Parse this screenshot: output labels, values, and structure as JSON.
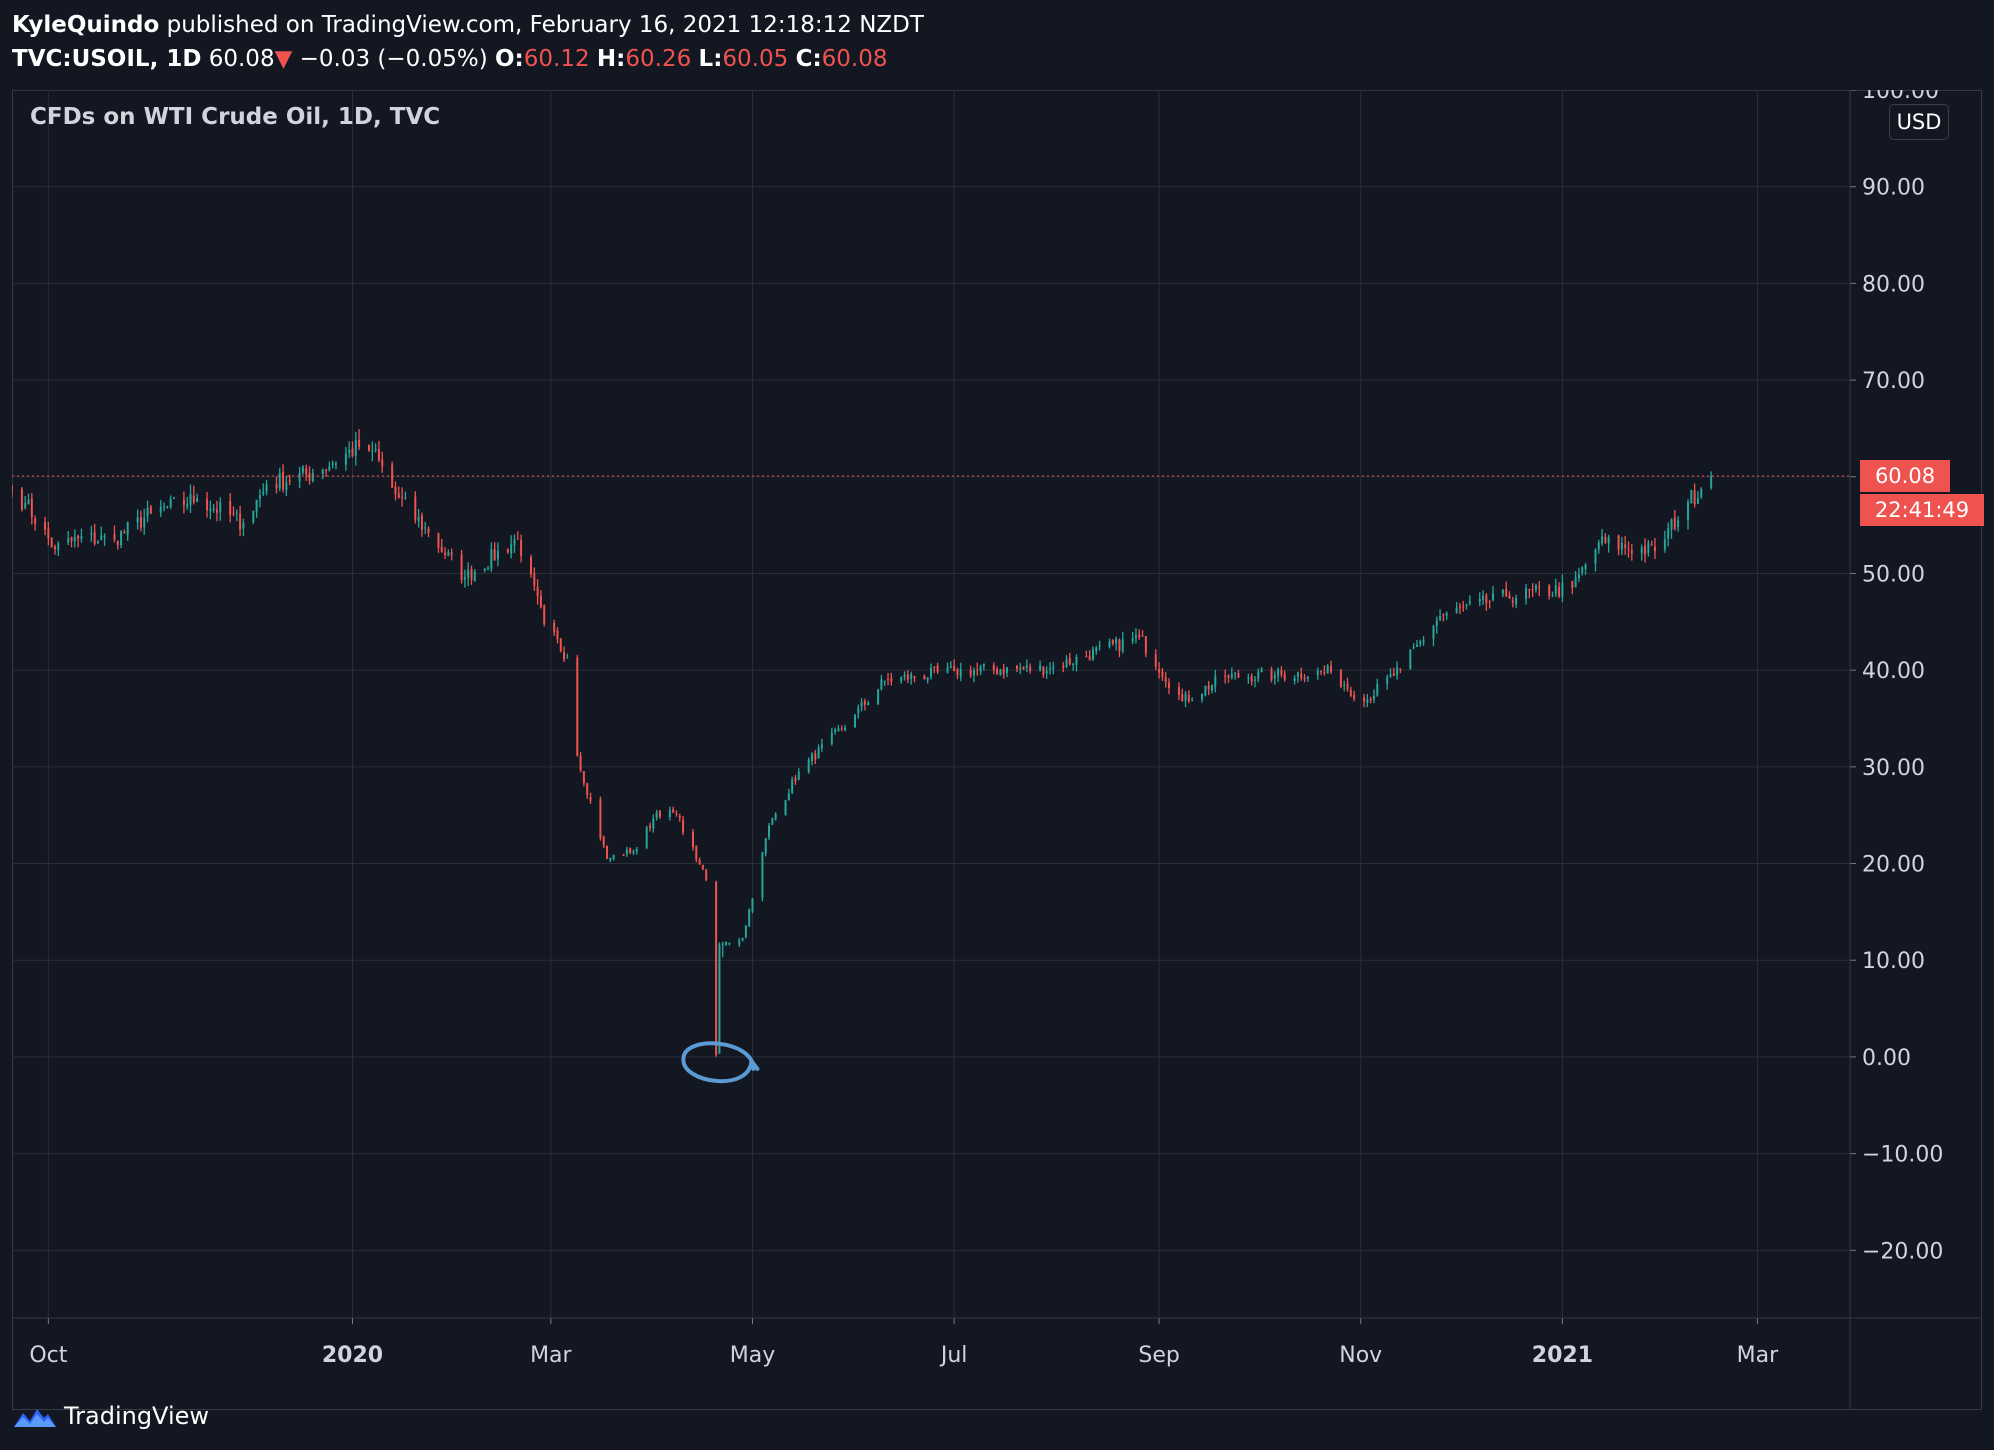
{
  "header": {
    "author": "KyleQuindo",
    "published": "published on TradingView.com, February 16, 2021 12:18:12 NZDT",
    "symbol": "TVC:USOIL, 1D",
    "last": "60.08",
    "change": "−0.03 (−0.05%)",
    "o_label": "O:",
    "o_value": "60.12",
    "h_label": "H:",
    "h_value": "60.26",
    "l_label": "L:",
    "l_value": "60.05",
    "c_label": "C:",
    "c_value": "60.08"
  },
  "pane_legend": "CFDs on WTI Crude Oil, 1D, TVC",
  "currency": "USD",
  "last_price_label": "60.08",
  "countdown": "22:41:49",
  "footer": {
    "brand": "TradingView"
  },
  "colors": {
    "background": "#131722",
    "grid": "#2a2e39",
    "up": "#26a69a",
    "down": "#ef5350",
    "text": "#d1d4dc",
    "annotation": "#5b9bd5"
  },
  "icons": [
    "down-triangle-icon",
    "tradingview-logo-icon",
    "hand-drawn-circle-annotation"
  ],
  "chart_data": {
    "type": "candlestick",
    "ylim": [
      -27,
      100
    ],
    "yticks": [
      "100.00",
      "90.00",
      "80.00",
      "70.00",
      "60.00",
      "50.00",
      "40.00",
      "30.00",
      "20.00",
      "10.00",
      "0.00",
      "−10.00",
      "−20.00"
    ],
    "ytick_values": [
      100,
      90,
      80,
      70,
      60,
      50,
      40,
      30,
      20,
      10,
      0,
      -10,
      -20
    ],
    "x_range": [
      "2019-09-20",
      "2021-03-29"
    ],
    "xticks": [
      {
        "label": "Oct",
        "date": "2019-10-01",
        "bold": false
      },
      {
        "label": "2020",
        "date": "2020-01-01",
        "bold": true
      },
      {
        "label": "Mar",
        "date": "2020-03-01",
        "bold": false
      },
      {
        "label": "May",
        "date": "2020-05-01",
        "bold": false
      },
      {
        "label": "Jul",
        "date": "2020-07-01",
        "bold": false
      },
      {
        "label": "Sep",
        "date": "2020-09-01",
        "bold": false
      },
      {
        "label": "Nov",
        "date": "2020-11-01",
        "bold": false
      },
      {
        "label": "2021",
        "date": "2021-01-01",
        "bold": true
      },
      {
        "label": "Mar",
        "date": "2021-03-01",
        "bold": false
      }
    ],
    "last_price": 60.08,
    "close_path": [
      [
        "2019-09-20",
        58.6
      ],
      [
        "2019-09-24",
        57.3
      ],
      [
        "2019-10-03",
        52.5
      ],
      [
        "2019-10-10",
        53.6
      ],
      [
        "2019-10-21",
        53.5
      ],
      [
        "2019-11-01",
        56.2
      ],
      [
        "2019-11-15",
        57.8
      ],
      [
        "2019-11-29",
        55.2
      ],
      [
        "2019-12-06",
        59.2
      ],
      [
        "2019-12-20",
        60.4
      ],
      [
        "2020-01-03",
        63.1
      ],
      [
        "2020-01-07",
        62.7
      ],
      [
        "2020-01-14",
        58.2
      ],
      [
        "2020-01-24",
        54.2
      ],
      [
        "2020-02-04",
        49.6
      ],
      [
        "2020-02-20",
        53.6
      ],
      [
        "2020-02-28",
        44.8
      ],
      [
        "2020-03-06",
        41.3
      ],
      [
        "2020-03-09",
        31.1
      ],
      [
        "2020-03-18",
        20.5
      ],
      [
        "2020-03-27",
        21.5
      ],
      [
        "2020-04-02",
        25.3
      ],
      [
        "2020-04-08",
        25.1
      ],
      [
        "2020-04-15",
        19.9
      ],
      [
        "2020-04-17",
        18.3
      ],
      [
        "2020-04-20",
        0.2
      ],
      [
        "2020-04-21",
        11.6
      ],
      [
        "2020-04-28",
        12.3
      ],
      [
        "2020-05-06",
        23.9
      ],
      [
        "2020-05-15",
        29.5
      ],
      [
        "2020-06-01",
        35.4
      ],
      [
        "2020-06-10",
        38.9
      ],
      [
        "2020-07-01",
        39.9
      ],
      [
        "2020-07-30",
        40.2
      ],
      [
        "2020-08-26",
        43.4
      ],
      [
        "2020-09-08",
        36.8
      ],
      [
        "2020-09-21",
        39.3
      ],
      [
        "2020-10-06",
        39.5
      ],
      [
        "2020-10-23",
        39.8
      ],
      [
        "2020-11-02",
        36.8
      ],
      [
        "2020-11-13",
        40.1
      ],
      [
        "2020-11-25",
        45.6
      ],
      [
        "2020-12-15",
        47.6
      ],
      [
        "2021-01-04",
        48.5
      ],
      [
        "2021-01-12",
        53.2
      ],
      [
        "2021-01-29",
        52.3
      ],
      [
        "2021-02-08",
        57.4
      ],
      [
        "2021-02-15",
        60.08
      ]
    ],
    "lows": [
      {
        "date": "2020-04-20",
        "value": 0.0
      },
      {
        "date": "2020-04-21",
        "value": 6.5
      },
      {
        "date": "2020-04-22",
        "value": 10.3
      }
    ],
    "annotations": [
      {
        "type": "hand-drawn-circle",
        "date": "2020-04-21",
        "value": 0.0
      }
    ]
  }
}
